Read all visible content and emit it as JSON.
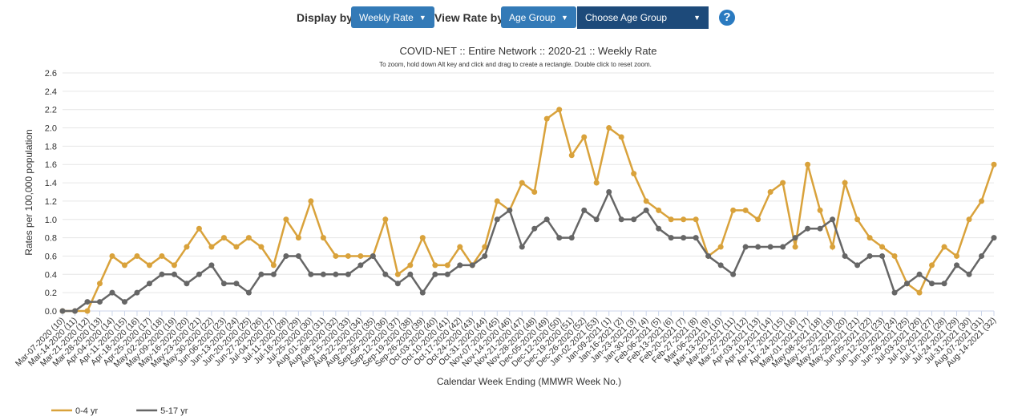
{
  "controls": {
    "display_label": "Display by",
    "display_button": "Weekly Rate",
    "view_label": "View Rate by",
    "view_button": "Age Group",
    "dropdown": "Choose Age Group",
    "help": "?"
  },
  "chart_data": {
    "type": "line",
    "title": "COVID-NET :: Entire Network :: 2020-21 :: Weekly Rate",
    "subtitle": "To zoom, hold down Alt key and click and drag to create a rectangle. Double click to reset zoom.",
    "x_label": "Calendar Week Ending (MMWR Week No.)",
    "y_label": "Rates per 100,000 population",
    "categories": [
      "Mar-07-2020 (10)",
      "Mar-14-2020 (11)",
      "Mar-21-2020 (12)",
      "Mar-28-2020 (13)",
      "Apr-04-2020 (14)",
      "Apr-11-2020 (15)",
      "Apr-18-2020 (16)",
      "Apr-25-2020 (17)",
      "May-02-2020 (18)",
      "May-09-2020 (19)",
      "May-16-2020 (20)",
      "May-23-2020 (21)",
      "May-30-2020 (22)",
      "Jun-06-2020 (23)",
      "Jun-13-2020 (24)",
      "Jun-20-2020 (25)",
      "Jun-27-2020 (26)",
      "Jul-04-2020 (27)",
      "Jul-11-2020 (28)",
      "Jul-18-2020 (29)",
      "Jul-25-2020 (30)",
      "Aug-01-2020 (31)",
      "Aug-08-2020 (32)",
      "Aug-15-2020 (33)",
      "Aug-22-2020 (34)",
      "Aug-29-2020 (35)",
      "Sep-05-2020 (36)",
      "Sep-12-2020 (37)",
      "Sep-19-2020 (38)",
      "Sep-26-2020 (39)",
      "Oct-03-2020 (40)",
      "Oct-10-2020 (41)",
      "Oct-17-2020 (42)",
      "Oct-24-2020 (43)",
      "Oct-31-2020 (44)",
      "Nov-07-2020 (45)",
      "Nov-14-2020 (46)",
      "Nov-21-2020 (47)",
      "Nov-28-2020 (48)",
      "Dec-05-2020 (49)",
      "Dec-12-2020 (50)",
      "Dec-19-2020 (51)",
      "Dec-26-2020 (52)",
      "Jan-02-2021 (53)",
      "Jan-09-2021 (1)",
      "Jan-16-2021 (2)",
      "Jan-23-2021 (3)",
      "Jan-30-2021 (4)",
      "Feb-06-2021 (5)",
      "Feb-13-2021 (6)",
      "Feb-20-2021 (7)",
      "Feb-27-2021 (8)",
      "Mar-06-2021 (9)",
      "Mar-13-2021 (10)",
      "Mar-20-2021 (11)",
      "Mar-27-2021 (12)",
      "Apr-03-2021 (13)",
      "Apr-10-2021 (14)",
      "Apr-17-2021 (15)",
      "Apr-24-2021 (16)",
      "May-01-2021 (17)",
      "May-08-2021 (18)",
      "May-15-2021 (19)",
      "May-22-2021 (20)",
      "May-29-2021 (21)",
      "Jun-05-2021 (22)",
      "Jun-12-2021 (23)",
      "Jun-19-2021 (24)",
      "Jun-26-2021 (25)",
      "Jul-03-2021 (26)",
      "Jul-10-2021 (27)",
      "Jul-17-2021 (28)",
      "Jul-24-2021 (29)",
      "Jul-31-2021 (30)",
      "Aug-07-2021 (31)",
      "Aug-14-2021 (32)"
    ],
    "series": [
      {
        "name": "0-4 yr",
        "color": "#d9a23b",
        "values": [
          0,
          0,
          0,
          0.3,
          0.6,
          0.5,
          0.6,
          0.5,
          0.6,
          0.5,
          0.7,
          0.9,
          0.7,
          0.8,
          0.7,
          0.8,
          0.7,
          0.5,
          1.0,
          0.8,
          1.2,
          0.8,
          0.6,
          0.6,
          0.6,
          0.6,
          1.0,
          0.4,
          0.5,
          0.8,
          0.5,
          0.5,
          0.7,
          0.5,
          0.7,
          1.2,
          1.1,
          1.4,
          1.3,
          2.1,
          2.2,
          1.7,
          1.9,
          1.4,
          2.0,
          1.9,
          1.5,
          1.2,
          1.1,
          1.0,
          1.0,
          1.0,
          0.6,
          0.7,
          1.1,
          1.1,
          1.0,
          1.3,
          1.4,
          0.7,
          1.6,
          1.1,
          0.7,
          1.4,
          1.0,
          0.8,
          0.7,
          0.6,
          0.3,
          0.2,
          0.5,
          0.7,
          0.6,
          1.0,
          1.2,
          1.6
        ]
      },
      {
        "name": "5-17 yr",
        "color": "#666666",
        "values": [
          0,
          0,
          0.1,
          0.1,
          0.2,
          0.1,
          0.2,
          0.3,
          0.4,
          0.4,
          0.3,
          0.4,
          0.5,
          0.3,
          0.3,
          0.2,
          0.4,
          0.4,
          0.6,
          0.6,
          0.4,
          0.4,
          0.4,
          0.4,
          0.5,
          0.6,
          0.4,
          0.3,
          0.4,
          0.2,
          0.4,
          0.4,
          0.5,
          0.5,
          0.6,
          1.0,
          1.1,
          0.7,
          0.9,
          1.0,
          0.8,
          0.8,
          1.1,
          1.0,
          1.3,
          1.0,
          1.0,
          1.1,
          0.9,
          0.8,
          0.8,
          0.8,
          0.6,
          0.5,
          0.4,
          0.7,
          0.7,
          0.7,
          0.7,
          0.8,
          0.9,
          0.9,
          1.0,
          0.6,
          0.5,
          0.6,
          0.6,
          0.2,
          0.3,
          0.4,
          0.3,
          0.3,
          0.5,
          0.4,
          0.6,
          0.8
        ]
      }
    ],
    "ylim": [
      0,
      2.6
    ],
    "yticks": [
      {
        "value": 0,
        "label": "0.0"
      },
      {
        "value": 0.2,
        "label": "0.2"
      },
      {
        "value": 0.4,
        "label": "0.4"
      },
      {
        "value": 0.6,
        "label": "0.6"
      },
      {
        "value": 0.8,
        "label": "0.8"
      },
      {
        "value": 1,
        "label": "1.0"
      },
      {
        "value": 1.2,
        "label": "1.2"
      },
      {
        "value": 1.4,
        "label": "1.4"
      },
      {
        "value": 1.6,
        "label": "1.6"
      },
      {
        "value": 1.8,
        "label": "1.8"
      },
      {
        "value": 2,
        "label": "2.0"
      },
      {
        "value": 2.2,
        "label": "2.2"
      },
      {
        "value": 2.4,
        "label": "2.4"
      },
      {
        "value": 2.6,
        "label": "2.6"
      }
    ],
    "grid": true,
    "legend": "bottom-left"
  }
}
